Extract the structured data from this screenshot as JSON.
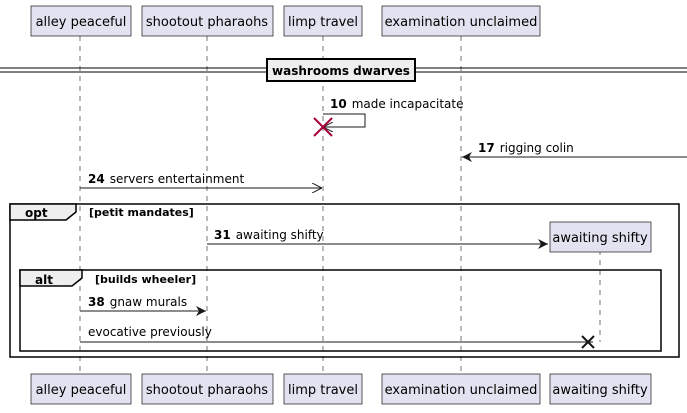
{
  "participants": {
    "alley_peaceful": "alley peaceful",
    "shootout_pharaohs": "shootout pharaohs",
    "limp_travel": "limp travel",
    "examination_unclaimed": "examination unclaimed",
    "awaiting_shifty": "awaiting shifty"
  },
  "divider": {
    "label": "washrooms dwarves"
  },
  "messages": [
    {
      "num": "10",
      "text": "made incapacitate"
    },
    {
      "num": "17",
      "text": "rigging colin"
    },
    {
      "num": "24",
      "text": "servers entertainment"
    },
    {
      "num": "31",
      "text": "awaiting shifty"
    },
    {
      "num": "38",
      "text": "gnaw murals"
    },
    {
      "num": "",
      "text": "evocative previously"
    }
  ],
  "fragments": {
    "opt": {
      "keyword": "opt",
      "guard": "[petit mandates]"
    },
    "alt": {
      "keyword": "alt",
      "guard": "[builds wheeler]"
    }
  },
  "colors": {
    "participant_fill": "#E2E2F0",
    "destroy_red": "#A80036",
    "line": "#181818"
  }
}
